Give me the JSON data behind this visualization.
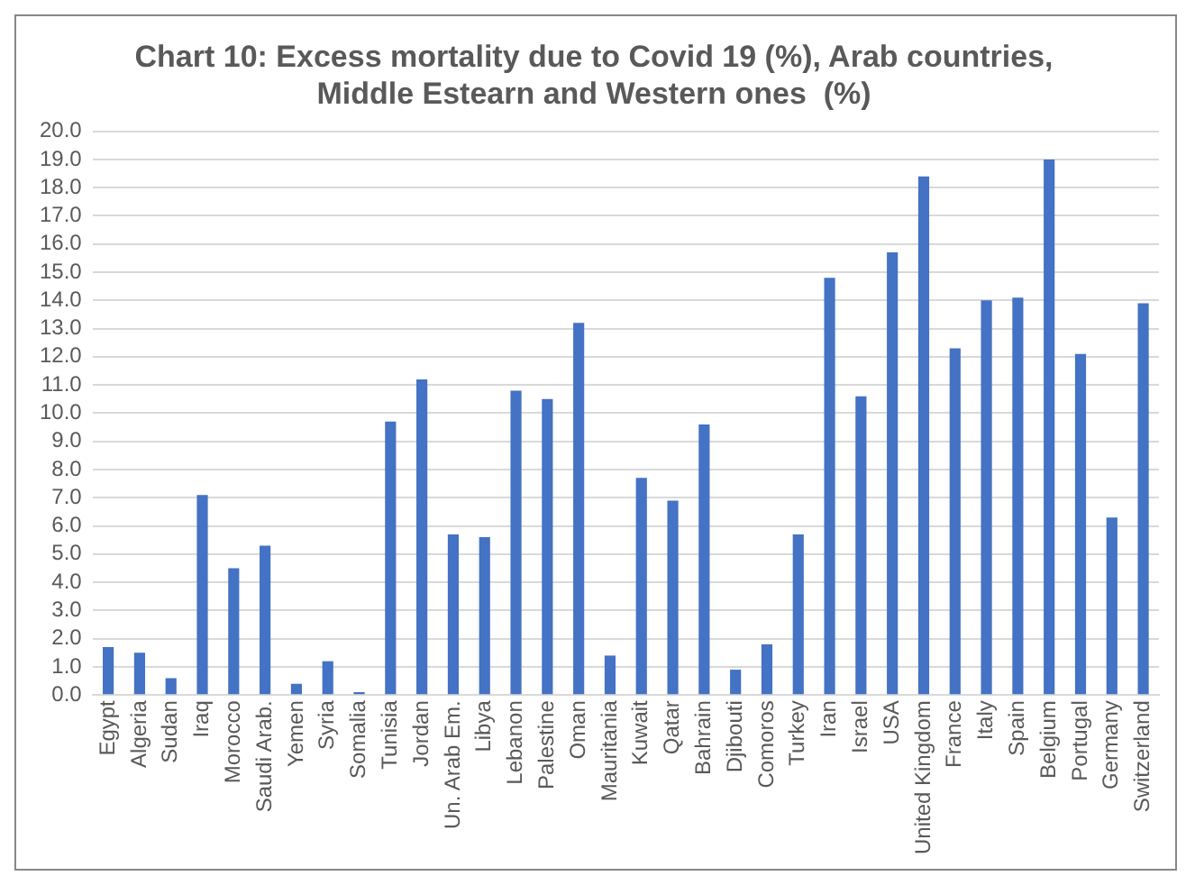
{
  "chart_data": {
    "type": "bar",
    "title": "Chart 10: Excess mortality due to Covid 19 (%), Arab countries, Middle Estearn and Western ones  (%)",
    "categories": [
      "Egypt",
      "Algeria",
      "Sudan",
      "Iraq",
      "Morocco",
      "Saudi Arab.",
      "Yemen",
      "Syria",
      "Somalia",
      "Tunisia",
      "Jordan",
      "Un. Arab Em.",
      "Libya",
      "Lebanon",
      "Palestine",
      "Oman",
      "Mauritania",
      "Kuwait",
      "Qatar",
      "Bahrain",
      "Djibouti",
      "Comoros",
      "Turkey",
      "Iran",
      "Israel",
      "USA",
      "United Kingdom",
      "France",
      "Italy",
      "Spain",
      "Belgium",
      "Portugal",
      "Germany",
      "Switzerland"
    ],
    "values": [
      1.7,
      1.5,
      0.6,
      7.1,
      4.5,
      5.3,
      0.4,
      1.2,
      0.1,
      9.7,
      11.2,
      5.7,
      5.6,
      10.8,
      10.5,
      13.2,
      1.4,
      7.7,
      6.9,
      9.6,
      0.9,
      1.8,
      5.7,
      14.8,
      10.6,
      15.7,
      18.4,
      12.3,
      14.0,
      14.1,
      19.0,
      12.1,
      6.3,
      13.9
    ],
    "color": "#4472c4",
    "ylim": [
      0,
      20
    ],
    "yticks": [
      {
        "value": 0,
        "label": "0.0"
      },
      {
        "value": 1,
        "label": "1.0"
      },
      {
        "value": 2,
        "label": "2.0"
      },
      {
        "value": 3,
        "label": "3.0"
      },
      {
        "value": 4,
        "label": "4.0"
      },
      {
        "value": 5,
        "label": "5.0"
      },
      {
        "value": 6,
        "label": "6.0"
      },
      {
        "value": 7,
        "label": "7.0"
      },
      {
        "value": 8,
        "label": "8.0"
      },
      {
        "value": 9,
        "label": "9.0"
      },
      {
        "value": 10,
        "label": "10.0"
      },
      {
        "value": 11,
        "label": "11.0"
      },
      {
        "value": 12,
        "label": "12.0"
      },
      {
        "value": 13,
        "label": "13.0"
      },
      {
        "value": 14,
        "label": "14.0"
      },
      {
        "value": 15,
        "label": "15.0"
      },
      {
        "value": 16,
        "label": "16.0"
      },
      {
        "value": 17,
        "label": "17.0"
      },
      {
        "value": 18,
        "label": "18.0"
      },
      {
        "value": 19,
        "label": "19.0"
      },
      {
        "value": 20,
        "label": "20.0"
      }
    ],
    "grid": "y",
    "legend": false
  }
}
